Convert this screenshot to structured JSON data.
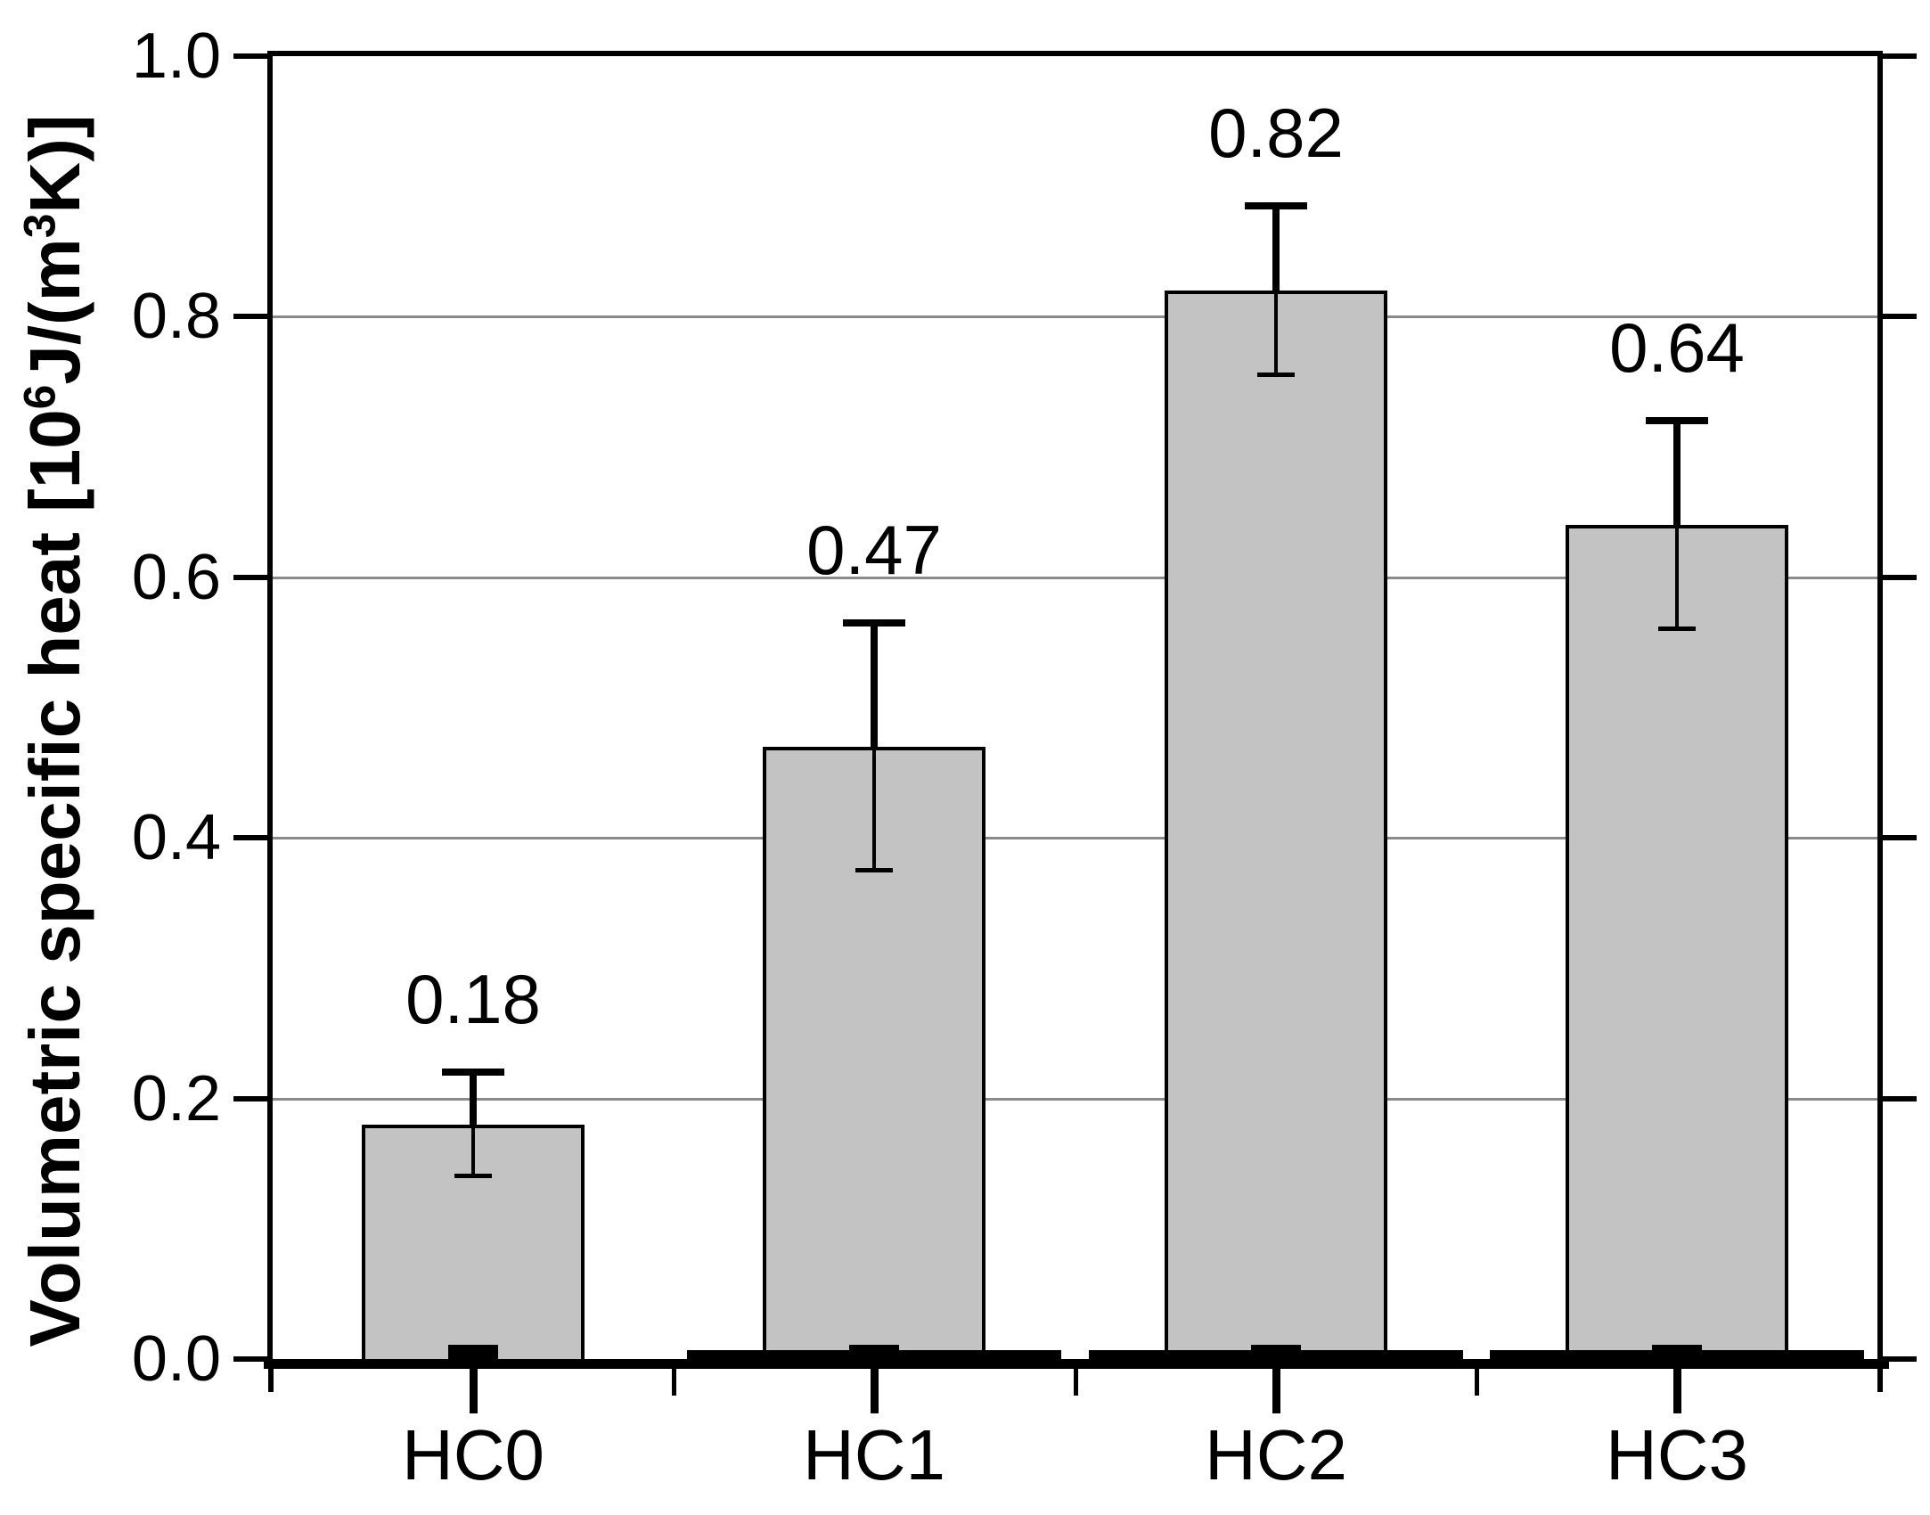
{
  "chart_data": {
    "type": "bar",
    "title": "",
    "categories": [
      "HC0",
      "HC1",
      "HC2",
      "HC3"
    ],
    "values": [
      0.18,
      0.47,
      0.82,
      0.64
    ],
    "labels": [
      "0.18",
      "0.47",
      "0.82",
      "0.64"
    ],
    "errors": [
      0.04,
      0.095,
      0.065,
      0.08
    ],
    "secondary_baseline_series": [
      0,
      0.007,
      0.007,
      0.007
    ],
    "xlabel": "",
    "ylabel": "Volumetric specific heat [10⁶J/(m³K)]",
    "ylabel_parts": [
      {
        "text": "Volumetric specific heat [10"
      },
      {
        "sup": "6"
      },
      {
        "text": "J/(m"
      },
      {
        "sup": "3"
      },
      {
        "text": "K)]"
      }
    ],
    "ylim": [
      0.0,
      1.0
    ],
    "ytick_values": [
      0,
      0.2,
      0.4,
      0.6,
      0.8,
      1.0
    ],
    "ytick_labels": [
      "0.0",
      "0.2",
      "0.4",
      "0.6",
      "0.8",
      "1.0"
    ],
    "gridline_values": [
      0.2,
      0.4,
      0.6,
      0.8
    ],
    "grid": "horizontal",
    "legend": "none",
    "colors": {
      "bar_fill": "#c3c3c3",
      "bar_border": "#000000",
      "error_bar": "#000000",
      "grid": "#8a8a8a",
      "axis": "#000000",
      "background": "#ffffff",
      "text": "#000000"
    }
  }
}
